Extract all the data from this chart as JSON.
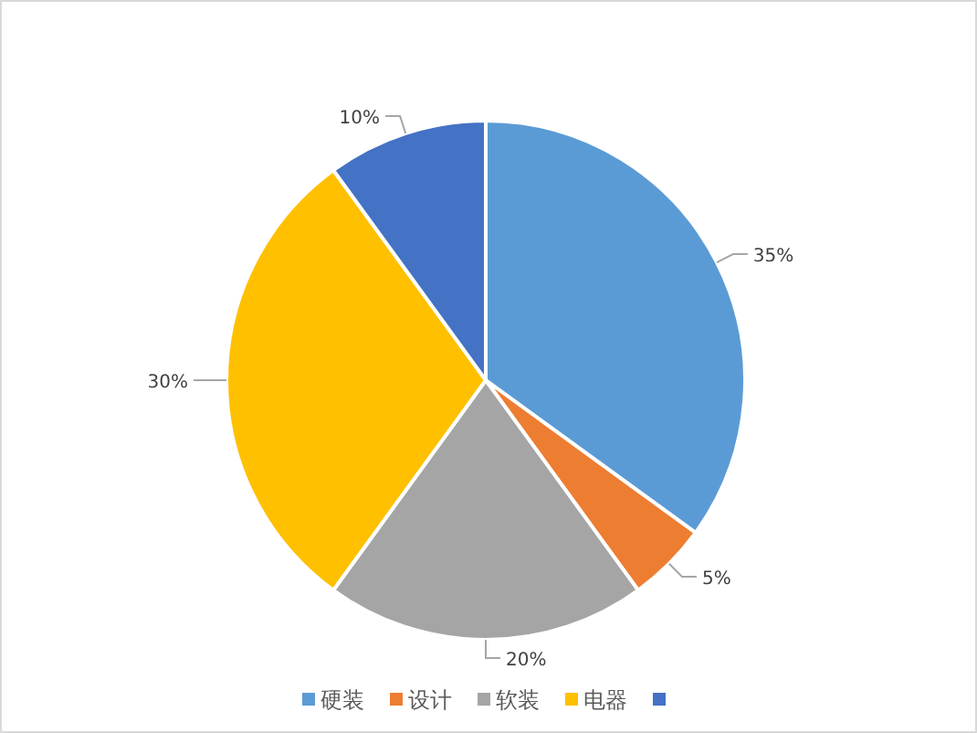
{
  "chart_data": {
    "type": "pie",
    "categories": [
      "硬装",
      "设计",
      "软装",
      "电器",
      null
    ],
    "values": [
      35,
      5,
      20,
      30,
      10
    ],
    "value_labels": [
      "35%",
      "5%",
      "20%",
      "30%",
      "10%"
    ],
    "colors": [
      "#5b9bd5",
      "#ed7d31",
      "#a5a5a5",
      "#ffc000",
      "#4472c4"
    ],
    "legend": "bottom"
  }
}
